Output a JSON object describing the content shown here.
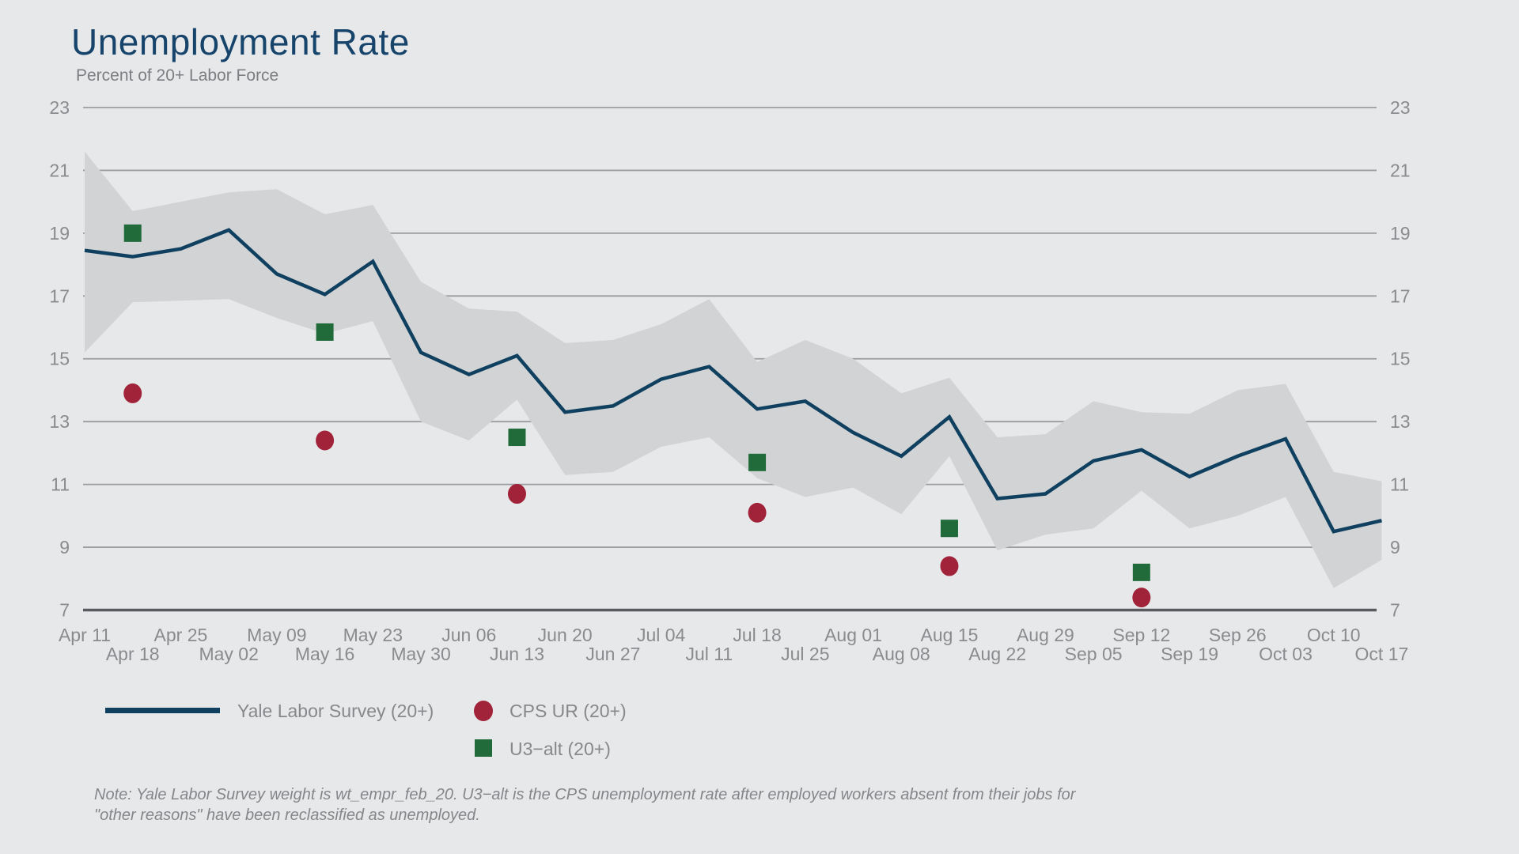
{
  "header": {
    "title": "Unemployment Rate",
    "subtitle": "Percent of 20+ Labor Force"
  },
  "chart_data": {
    "type": "line",
    "title": "Unemployment Rate",
    "subtitle": "Percent of 20+ Labor Force",
    "ylim": [
      7,
      23
    ],
    "yticks": [
      7,
      9,
      11,
      13,
      15,
      17,
      19,
      21,
      23
    ],
    "grid": "horizontal",
    "y_axis_labels": "both-sides",
    "x": [
      "Apr 11",
      "Apr 18",
      "Apr 25",
      "May 02",
      "May 09",
      "May 16",
      "May 23",
      "May 30",
      "Jun 06",
      "Jun 13",
      "Jun 20",
      "Jun 27",
      "Jul 04",
      "Jul 11",
      "Jul 18",
      "Jul 25",
      "Aug 01",
      "Aug 08",
      "Aug 15",
      "Aug 22",
      "Aug 29",
      "Sep 05",
      "Sep 12",
      "Sep 19",
      "Sep 26",
      "Oct 03",
      "Oct 10",
      "Oct 17"
    ],
    "xticks_row1": [
      "Apr 11",
      "Apr 25",
      "May 09",
      "May 23",
      "Jun 06",
      "Jun 20",
      "Jul 04",
      "Jul 18",
      "Aug 01",
      "Aug 15",
      "Aug 29",
      "Sep 12",
      "Sep 26",
      "Oct 10"
    ],
    "xticks_row2": [
      "Apr 18",
      "May 02",
      "May 16",
      "May 30",
      "Jun 13",
      "Jun 27",
      "Jul 11",
      "Jul 25",
      "Aug 08",
      "Aug 22",
      "Sep 05",
      "Sep 19",
      "Oct 03",
      "Oct 17"
    ],
    "series": [
      {
        "name": "Yale Labor Survey (20+)",
        "type": "line",
        "color": "#10405f",
        "values": [
          18.45,
          18.25,
          18.5,
          19.1,
          17.7,
          17.05,
          18.1,
          15.2,
          14.5,
          15.1,
          13.3,
          13.5,
          14.35,
          14.75,
          13.4,
          13.65,
          12.65,
          11.9,
          13.15,
          10.55,
          10.7,
          11.75,
          12.1,
          11.25,
          11.9,
          12.45,
          9.5,
          9.85
        ]
      },
      {
        "name": "confidence-band",
        "type": "area-band",
        "color": "#d2d3d5",
        "upper": [
          21.6,
          19.7,
          20.0,
          20.3,
          20.4,
          19.6,
          19.9,
          17.45,
          16.6,
          16.5,
          15.5,
          15.6,
          16.1,
          16.9,
          14.9,
          15.6,
          15.0,
          13.9,
          14.4,
          12.5,
          12.6,
          13.65,
          13.3,
          13.25,
          14.0,
          14.2,
          11.4,
          11.1
        ],
        "lower": [
          15.2,
          16.8,
          16.85,
          16.9,
          16.3,
          15.8,
          16.2,
          13.0,
          12.4,
          13.7,
          11.3,
          11.4,
          12.2,
          12.5,
          11.2,
          10.6,
          10.9,
          10.05,
          11.9,
          8.9,
          9.4,
          9.6,
          10.8,
          9.6,
          10.0,
          10.6,
          7.7,
          8.6
        ]
      },
      {
        "name": "CPS UR (20+)",
        "type": "scatter-circle",
        "color": "#a02339",
        "points": [
          {
            "date": "Apr 18",
            "value": 13.9
          },
          {
            "date": "May 16",
            "value": 12.4
          },
          {
            "date": "Jun 13",
            "value": 10.7
          },
          {
            "date": "Jul 18",
            "value": 10.1
          },
          {
            "date": "Aug 15",
            "value": 8.4
          },
          {
            "date": "Sep 12",
            "value": 7.4
          }
        ]
      },
      {
        "name": "U3−alt (20+)",
        "type": "scatter-square",
        "color": "#216b3a",
        "points": [
          {
            "date": "Apr 18",
            "value": 19.0
          },
          {
            "date": "May 16",
            "value": 15.85
          },
          {
            "date": "Jun 13",
            "value": 12.5
          },
          {
            "date": "Jul 18",
            "value": 11.7
          },
          {
            "date": "Aug 15",
            "value": 9.6
          },
          {
            "date": "Sep 12",
            "value": 8.2
          }
        ]
      }
    ],
    "legend_position": "bottom-left"
  },
  "legend": {
    "items": [
      {
        "label": "Yale Labor Survey (20+)",
        "marker": "line"
      },
      {
        "label": "CPS UR (20+)",
        "marker": "circle"
      },
      {
        "label": "U3−alt (20+)",
        "marker": "square"
      }
    ]
  },
  "note": {
    "line1": "Note: Yale Labor Survey weight is wt_empr_feb_20. U3−alt is the CPS unemployment rate after employed workers absent from their jobs for",
    "line2": "\"other reasons\" have been reclassified as unemployed."
  },
  "colors": {
    "background": "#e7e8e9",
    "band": "#d2d3d5",
    "gridline": "#9b9ca0",
    "axis_line": "#5a5b5e",
    "line": "#10405f",
    "cps_dot": "#a02339",
    "u3alt_square": "#216b3a",
    "tick_text": "#8a8b8e",
    "title_text": "#17446b",
    "subtitle_text": "#7d7e82",
    "note_text": "#85868a"
  }
}
